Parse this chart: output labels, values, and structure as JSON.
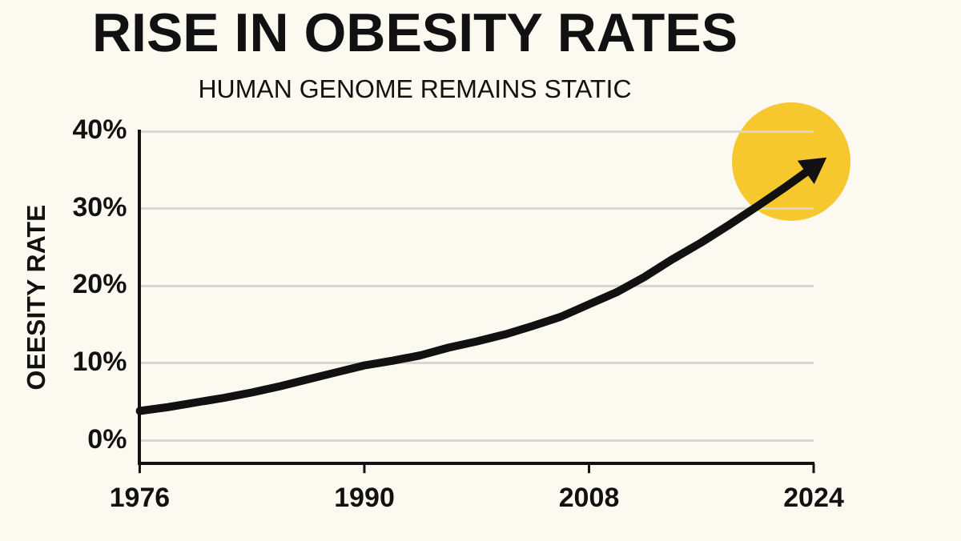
{
  "chart_data": {
    "type": "line",
    "title": "RISE IN OBESITY RATES",
    "subtitle": "HUMAN GENOME REMAINS STATIC",
    "ylabel": "OEESITY RATE",
    "categories": [
      "1976",
      null,
      null,
      null,
      null,
      null,
      null,
      null,
      "1990",
      null,
      null,
      null,
      null,
      null,
      null,
      null,
      "2008",
      null,
      null,
      null,
      null,
      null,
      null,
      null,
      "2024"
    ],
    "series": [
      {
        "color": "#111111",
        "values": [
          3.8,
          4.3,
          4.9,
          5.5,
          6.2,
          7.0,
          7.9,
          8.8,
          9.7,
          10.3,
          11.0,
          12.0,
          12.8,
          13.7,
          14.8,
          16.0,
          17.6,
          19.2,
          21.2,
          23.5,
          25.6,
          27.9,
          30.3,
          32.8,
          35.4
        ]
      }
    ],
    "ylim": [
      -3,
      40
    ],
    "yticks": [
      {
        "value": 0,
        "label": "0%"
      },
      {
        "value": 10,
        "label": "10%"
      },
      {
        "value": 20,
        "label": "20%"
      },
      {
        "value": 30,
        "label": "30%"
      },
      {
        "value": 40,
        "label": "40%"
      }
    ],
    "grid": "y",
    "legend": false,
    "marker": "none",
    "line_style": "solid"
  }
}
